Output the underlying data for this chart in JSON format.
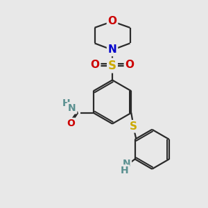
{
  "bg_color": "#e8e8e8",
  "bond_color": "#2a2a2a",
  "bond_width": 1.6,
  "atom_colors": {
    "N": "#0000cc",
    "O": "#cc0000",
    "S": "#ccaa00",
    "NH_teal": "#5a9090",
    "NH2_teal": "#5a9090"
  },
  "font_sizes": {
    "large": 12,
    "medium": 11,
    "small": 10
  }
}
